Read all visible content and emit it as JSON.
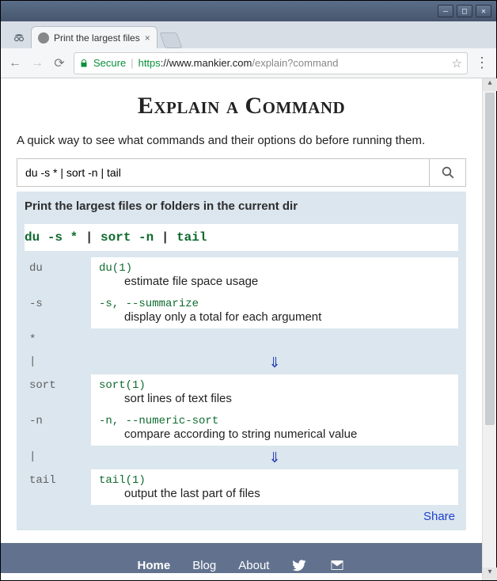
{
  "os": {
    "min_label": "—",
    "max_label": "□",
    "close_label": "✕"
  },
  "browser": {
    "tab_title": "Print the largest files",
    "secure_label": "Secure",
    "url_proto": "https",
    "url_host": "://www.mankier.com",
    "url_path": "/explain?command"
  },
  "page": {
    "title": "Explain a Command",
    "tagline": "A quick way to see what commands and their options do before running them.",
    "search_value": "du -s * | sort -n | tail",
    "result_title": "Print the largest files or folders in the current dir",
    "cmd_tokens": [
      "du",
      "-s",
      "*",
      "|",
      "sort",
      "-n",
      "|",
      "tail"
    ],
    "rows": [
      {
        "k": "du",
        "ref": "du(1)",
        "desc": "estimate file space usage"
      },
      {
        "k": "-s",
        "ref": "-s, --summarize",
        "desc": "display only a total for each argument"
      },
      {
        "k": "*",
        "ref": "",
        "desc": ""
      },
      {
        "k": "|",
        "arrow": true
      },
      {
        "k": "sort",
        "ref": "sort(1)",
        "desc": "sort lines of text files"
      },
      {
        "k": "-n",
        "ref": "-n, --numeric-sort",
        "desc": "compare according to string numerical value"
      },
      {
        "k": "|",
        "arrow": true
      },
      {
        "k": "tail",
        "ref": "tail(1)",
        "desc": "output the last part of files"
      }
    ],
    "share_label": "Share"
  },
  "footer": {
    "items": [
      "Home",
      "Blog",
      "About"
    ]
  },
  "colors": {
    "page_accent": "#0f6b2f",
    "result_bg": "#dbe6ee",
    "footer_bg": "#62728e",
    "link_blue": "#2040d0"
  }
}
